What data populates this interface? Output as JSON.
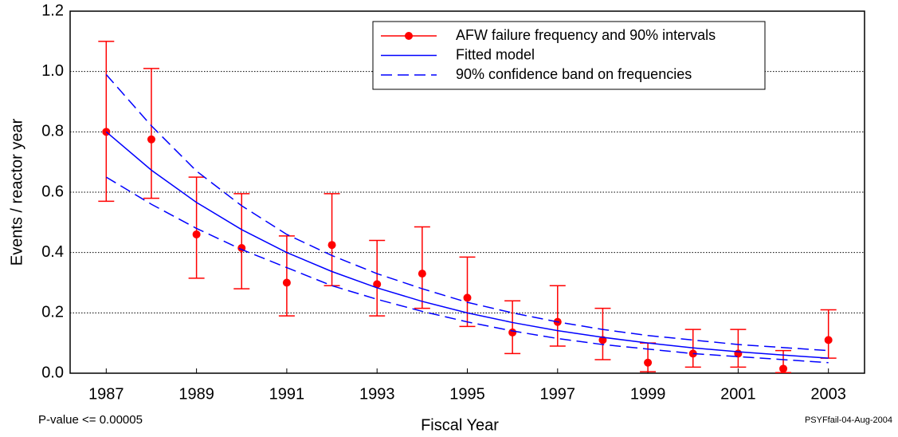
{
  "chart_data": {
    "type": "errorbar",
    "x": [
      1987,
      1988,
      1989,
      1990,
      1991,
      1992,
      1993,
      1994,
      1995,
      1996,
      1997,
      1998,
      1999,
      2000,
      2001,
      2002,
      2003
    ],
    "series": [
      {
        "name": "AFW failure frequency and 90% intervals",
        "color": "#ff0000",
        "values": [
          0.8,
          0.775,
          0.46,
          0.415,
          0.3,
          0.425,
          0.295,
          0.33,
          0.25,
          0.135,
          0.17,
          0.11,
          0.035,
          0.065,
          0.065,
          0.015,
          0.11
        ],
        "lower": [
          0.57,
          0.58,
          0.315,
          0.28,
          0.19,
          0.29,
          0.19,
          0.215,
          0.155,
          0.065,
          0.09,
          0.045,
          0.005,
          0.02,
          0.02,
          0.002,
          0.05
        ],
        "upper": [
          1.1,
          1.01,
          0.65,
          0.595,
          0.455,
          0.595,
          0.44,
          0.485,
          0.385,
          0.24,
          0.29,
          0.215,
          0.1,
          0.145,
          0.145,
          0.075,
          0.21
        ]
      },
      {
        "name": "Fitted model",
        "color": "#0000ff",
        "values": [
          0.8,
          0.673,
          0.566,
          0.476,
          0.4,
          0.337,
          0.283,
          0.238,
          0.2,
          0.168,
          0.141,
          0.119,
          0.1,
          0.084,
          0.071,
          0.06,
          0.05
        ]
      },
      {
        "name": "90% confidence band on frequencies",
        "color": "#0000ff",
        "dashed": true,
        "lower": [
          0.65,
          0.56,
          0.48,
          0.41,
          0.35,
          0.29,
          0.245,
          0.205,
          0.17,
          0.14,
          0.115,
          0.095,
          0.08,
          0.065,
          0.055,
          0.045,
          0.035
        ],
        "upper": [
          0.99,
          0.82,
          0.67,
          0.555,
          0.46,
          0.39,
          0.33,
          0.28,
          0.235,
          0.2,
          0.17,
          0.145,
          0.125,
          0.11,
          0.095,
          0.085,
          0.075
        ]
      }
    ],
    "x_label": "Fiscal Year",
    "y_label": "Events / reactor year",
    "xlim": [
      1986.2,
      2003.8
    ],
    "xticks": [
      1987,
      1989,
      1991,
      1993,
      1995,
      1997,
      1999,
      2001,
      2003
    ],
    "ylim": [
      0,
      1.2
    ],
    "yticks": [
      {
        "value": 0,
        "label": "0.0"
      },
      0.2,
      0.4,
      0.6,
      0.8,
      {
        "value": 1,
        "label": "1.0"
      },
      1.2
    ],
    "grid": true,
    "legend": "upper right",
    "annotations": [
      "P-value <= 0.00005",
      "PSYFfail-04-Aug-2004"
    ]
  }
}
